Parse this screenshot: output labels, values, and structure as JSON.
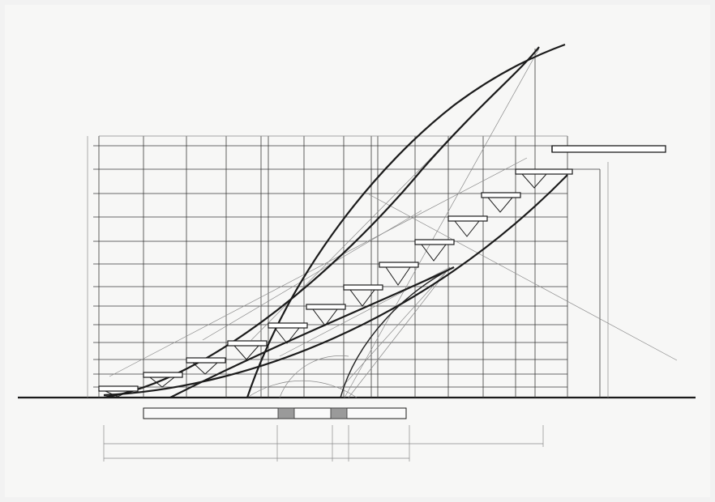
{
  "drawing": {
    "type": "architectural stair elevation drawing"
  },
  "colors": {
    "paper": "#f7f7f6",
    "ink": "#1b1b1b",
    "construction": "#8a8a8a"
  }
}
